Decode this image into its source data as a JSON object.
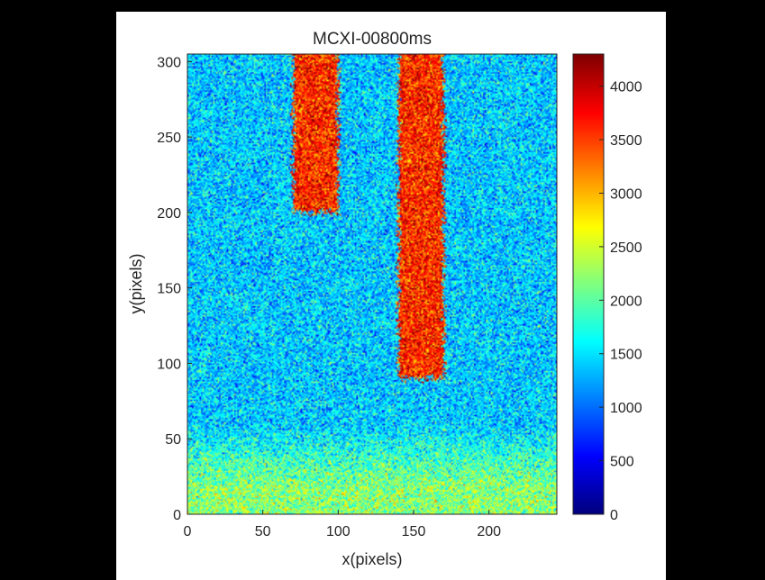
{
  "window": {
    "background_color": "#000000",
    "figure_color": "#ffffff"
  },
  "chart_data": {
    "type": "heatmap",
    "title": "MCXI-00800ms",
    "xlabel": "x(pixels)",
    "ylabel": "y(pixels)",
    "xlim": [
      0,
      245
    ],
    "ylim": [
      0,
      305
    ],
    "x_ticks": [
      0,
      50,
      100,
      150,
      200
    ],
    "y_ticks": [
      0,
      50,
      100,
      150,
      200,
      250,
      300
    ],
    "colormap": "jet",
    "colorbar": {
      "range": [
        0,
        4300
      ],
      "ticks": [
        0,
        500,
        1000,
        1500,
        2000,
        2500,
        3000,
        3500,
        4000
      ],
      "placement": "right"
    },
    "background_level": 1400,
    "bottom_band": {
      "y_range": [
        0,
        60
      ],
      "level": 2200
    },
    "features": [
      {
        "name": "",
        "x_range": [
          70,
          100
        ],
        "y_range": [
          200,
          305
        ],
        "level": 3600
      },
      {
        "name": "",
        "x_range": [
          140,
          170
        ],
        "y_range": [
          90,
          305
        ],
        "level": 3600
      }
    ]
  }
}
